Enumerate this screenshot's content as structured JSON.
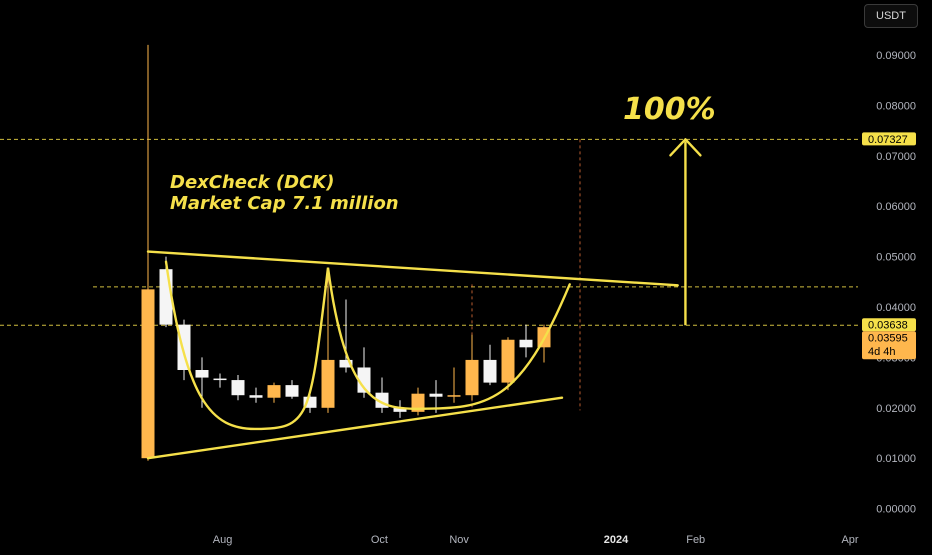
{
  "toolbar": {
    "currency": "USDT"
  },
  "annotations": {
    "title": "DexCheck (DCK)",
    "market_cap": "Market Cap 7.1 million",
    "target_pct": "100%"
  },
  "colors": {
    "background": "#000000",
    "bull": "#ffb74d",
    "bear": "#f5f5f5",
    "pattern": "#f5e04a",
    "axis_text": "#b2b5be"
  },
  "chart_data": {
    "type": "candlestick",
    "interval": "1W",
    "y_axis": {
      "ticks": [
        "0.00000",
        "0.01000",
        "0.02000",
        "0.03000",
        "0.04000",
        "0.05000",
        "0.06000",
        "0.07000",
        "0.08000",
        "0.09000"
      ],
      "range": [
        -0.0005,
        0.096
      ],
      "position": "right"
    },
    "x_axis": {
      "labels": [
        {
          "text": "Aug",
          "date": "2023-08-01",
          "bold": false
        },
        {
          "text": "Oct",
          "date": "2023-10-01",
          "bold": false
        },
        {
          "text": "Nov",
          "date": "2023-11-01",
          "bold": false
        },
        {
          "text": "2024",
          "date": "2024-01-01",
          "bold": true
        },
        {
          "text": "Feb",
          "date": "2024-02-01",
          "bold": false
        },
        {
          "text": "Apr",
          "date": "2024-04-01",
          "bold": false
        }
      ]
    },
    "candles": [
      {
        "date": "2023-07-03",
        "open": 0.01,
        "high": 0.092,
        "low": 0.0095,
        "close": 0.0435
      },
      {
        "date": "2023-07-10",
        "open": 0.0475,
        "high": 0.05,
        "low": 0.036,
        "close": 0.0365
      },
      {
        "date": "2023-07-17",
        "open": 0.0365,
        "high": 0.0375,
        "low": 0.0255,
        "close": 0.0275
      },
      {
        "date": "2023-07-24",
        "open": 0.0275,
        "high": 0.03,
        "low": 0.02,
        "close": 0.026
      },
      {
        "date": "2023-07-31",
        "open": 0.0258,
        "high": 0.0268,
        "low": 0.024,
        "close": 0.0255
      },
      {
        "date": "2023-08-07",
        "open": 0.0255,
        "high": 0.0265,
        "low": 0.0215,
        "close": 0.0225
      },
      {
        "date": "2023-08-14",
        "open": 0.0225,
        "high": 0.024,
        "low": 0.021,
        "close": 0.022
      },
      {
        "date": "2023-08-21",
        "open": 0.022,
        "high": 0.025,
        "low": 0.021,
        "close": 0.0245
      },
      {
        "date": "2023-08-28",
        "open": 0.0245,
        "high": 0.0255,
        "low": 0.0218,
        "close": 0.0222
      },
      {
        "date": "2023-09-04",
        "open": 0.0222,
        "high": 0.0235,
        "low": 0.019,
        "close": 0.02
      },
      {
        "date": "2023-09-11",
        "open": 0.02,
        "high": 0.0475,
        "low": 0.019,
        "close": 0.0295
      },
      {
        "date": "2023-09-18",
        "open": 0.0295,
        "high": 0.0415,
        "low": 0.027,
        "close": 0.028
      },
      {
        "date": "2023-09-25",
        "open": 0.028,
        "high": 0.032,
        "low": 0.022,
        "close": 0.023
      },
      {
        "date": "2023-10-02",
        "open": 0.023,
        "high": 0.026,
        "low": 0.019,
        "close": 0.02
      },
      {
        "date": "2023-10-09",
        "open": 0.02,
        "high": 0.0215,
        "low": 0.018,
        "close": 0.0192
      },
      {
        "date": "2023-10-16",
        "open": 0.0192,
        "high": 0.024,
        "low": 0.0185,
        "close": 0.0228
      },
      {
        "date": "2023-10-23",
        "open": 0.0228,
        "high": 0.0255,
        "low": 0.019,
        "close": 0.0222
      },
      {
        "date": "2023-10-30",
        "open": 0.0222,
        "high": 0.028,
        "low": 0.021,
        "close": 0.0225
      },
      {
        "date": "2023-11-06",
        "open": 0.0225,
        "high": 0.0345,
        "low": 0.0215,
        "close": 0.0295
      },
      {
        "date": "2023-11-13",
        "open": 0.0295,
        "high": 0.0325,
        "low": 0.0245,
        "close": 0.025
      },
      {
        "date": "2023-11-20",
        "open": 0.025,
        "high": 0.034,
        "low": 0.0235,
        "close": 0.0335
      },
      {
        "date": "2023-11-27",
        "open": 0.0335,
        "high": 0.0365,
        "low": 0.03,
        "close": 0.032
      },
      {
        "date": "2023-12-04",
        "open": 0.032,
        "high": 0.0365,
        "low": 0.029,
        "close": 0.036
      }
    ],
    "price_labels": [
      {
        "value": 0.07327,
        "text": "0.07327",
        "style": "target"
      },
      {
        "value": 0.03638,
        "text": "0.03638",
        "style": "target"
      },
      {
        "value": 0.03595,
        "text": "0.03595",
        "style": "last",
        "countdown": "4d 4h"
      }
    ],
    "horizontal_lines": [
      {
        "value": 0.07327,
        "style": "dashed"
      },
      {
        "value": 0.03638,
        "style": "dashed"
      },
      {
        "value": 0.044,
        "style": "dashed"
      }
    ],
    "vertical_lines": [
      {
        "date": "2023-11-06"
      },
      {
        "date": "2023-12-18"
      }
    ],
    "trendlines": [
      {
        "name": "resistance",
        "from": {
          "date": "2023-07-03",
          "value": 0.051
        },
        "to": {
          "date": "2024-01-25",
          "value": 0.0443
        }
      },
      {
        "name": "support",
        "from": {
          "date": "2023-07-03",
          "value": 0.01
        },
        "to": {
          "date": "2023-12-11",
          "value": 0.022
        }
      },
      {
        "name": "cup-handle",
        "points": [
          {
            "date": "2023-07-10",
            "value": 0.049
          },
          {
            "date": "2023-08-14",
            "value": 0.0158
          },
          {
            "date": "2023-09-11",
            "value": 0.0478
          },
          {
            "date": "2023-10-16",
            "value": 0.0198
          },
          {
            "date": "2023-12-14",
            "value": 0.0445
          }
        ]
      }
    ],
    "arrow": {
      "date": "2024-01-28",
      "from": 0.03638,
      "to": 0.07327
    }
  }
}
